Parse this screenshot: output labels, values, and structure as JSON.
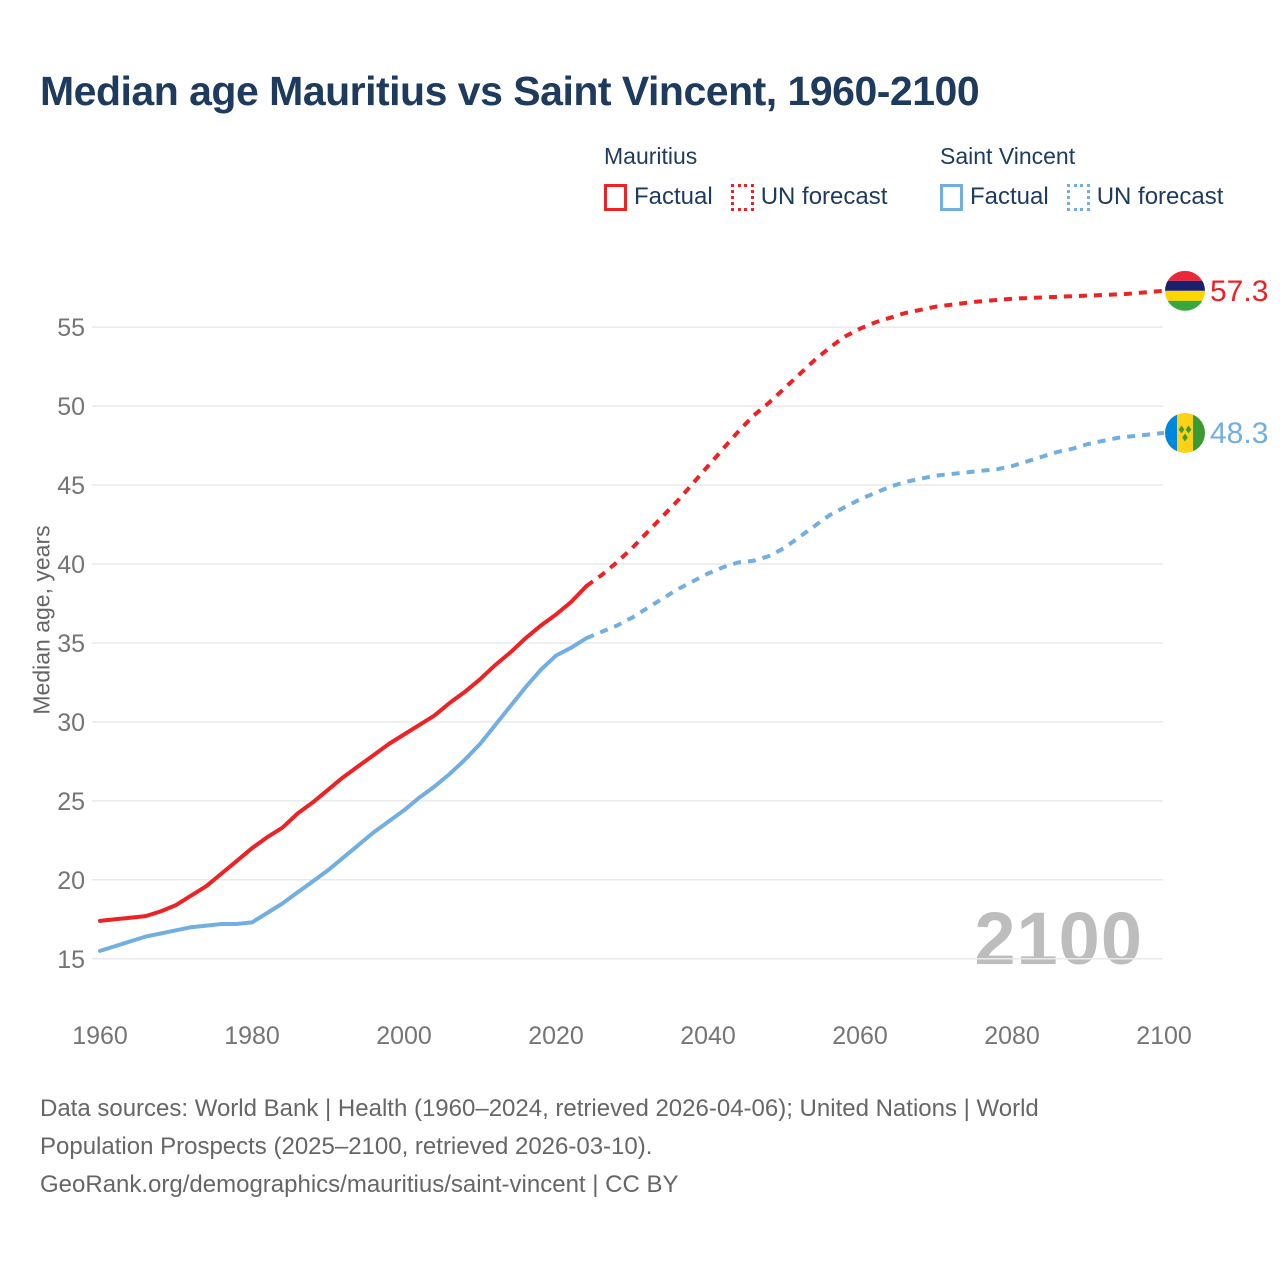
{
  "page": {
    "title": "Median age Mauritius vs Saint Vincent, 1960-2100",
    "watermark": "2100"
  },
  "colors": {
    "mauritius": "#ed2224",
    "saint_vincent": "#72aee0",
    "heading_navy": "#1e3a5c",
    "axis_gray": "#757575",
    "gridline": "#eaeaea"
  },
  "legend": {
    "groups": [
      {
        "name": "Mauritius",
        "color": "#ed2224",
        "items": [
          {
            "label": "Factual",
            "style": "solid"
          },
          {
            "label": "UN forecast",
            "style": "dashed"
          }
        ]
      },
      {
        "name": "Saint Vincent",
        "color": "#72aee0",
        "items": [
          {
            "label": "Factual",
            "style": "solid"
          },
          {
            "label": "UN forecast",
            "style": "dashed"
          }
        ]
      }
    ]
  },
  "chart_data": {
    "type": "line",
    "title": "Median age Mauritius vs Saint Vincent, 1960-2100",
    "xlabel": "",
    "ylabel": "Median age, years",
    "x_ticks": [
      1960,
      1980,
      2000,
      2020,
      2040,
      2060,
      2080,
      2100
    ],
    "y_ticks": [
      15,
      20,
      25,
      30,
      35,
      40,
      45,
      50,
      55
    ],
    "xlim": [
      1956,
      2104
    ],
    "ylim": [
      13,
      59
    ],
    "grid": "horizontal",
    "legend_position": "top-right",
    "annotations": {
      "watermark": "2100"
    },
    "series": [
      {
        "id": "mauritius-factual",
        "name": "Mauritius Factual",
        "color": "#ed2224",
        "style": "solid",
        "x": [
          1960,
          1962,
          1964,
          1966,
          1968,
          1970,
          1972,
          1974,
          1976,
          1978,
          1980,
          1982,
          1984,
          1986,
          1988,
          1990,
          1992,
          1994,
          1996,
          1998,
          2000,
          2002,
          2004,
          2006,
          2008,
          2010,
          2012,
          2014,
          2016,
          2018,
          2020,
          2022,
          2024
        ],
        "y": [
          17.4,
          17.5,
          17.6,
          17.7,
          18.0,
          18.4,
          19.0,
          19.6,
          20.4,
          21.2,
          22.0,
          22.7,
          23.3,
          24.2,
          24.9,
          25.7,
          26.5,
          27.2,
          27.9,
          28.6,
          29.2,
          29.8,
          30.4,
          31.2,
          31.9,
          32.7,
          33.6,
          34.4,
          35.3,
          36.1,
          36.8,
          37.6,
          38.6
        ]
      },
      {
        "id": "mauritius-forecast",
        "name": "Mauritius UN forecast",
        "color": "#ed2224",
        "style": "dashed",
        "x": [
          2024,
          2026,
          2028,
          2030,
          2032,
          2034,
          2036,
          2038,
          2040,
          2042,
          2044,
          2046,
          2048,
          2050,
          2052,
          2054,
          2056,
          2058,
          2060,
          2062,
          2064,
          2066,
          2068,
          2070,
          2075,
          2080,
          2085,
          2090,
          2095,
          2100
        ],
        "y": [
          38.6,
          39.3,
          40.1,
          41.0,
          42.0,
          43.0,
          44.0,
          45.1,
          46.2,
          47.3,
          48.4,
          49.4,
          50.2,
          51.1,
          52.0,
          52.9,
          53.7,
          54.4,
          54.9,
          55.3,
          55.6,
          55.9,
          56.1,
          56.3,
          56.6,
          56.8,
          56.9,
          57.0,
          57.1,
          57.3
        ],
        "end_label": "57.3",
        "flag": "mauritius"
      },
      {
        "id": "saint-vincent-factual",
        "name": "Saint Vincent Factual",
        "color": "#72aee0",
        "style": "solid",
        "x": [
          1960,
          1962,
          1964,
          1966,
          1968,
          1970,
          1972,
          1974,
          1976,
          1978,
          1980,
          1982,
          1984,
          1986,
          1988,
          1990,
          1992,
          1994,
          1996,
          1998,
          2000,
          2002,
          2004,
          2006,
          2008,
          2010,
          2012,
          2014,
          2016,
          2018,
          2020,
          2022,
          2024
        ],
        "y": [
          15.5,
          15.8,
          16.1,
          16.4,
          16.6,
          16.8,
          17.0,
          17.1,
          17.2,
          17.2,
          17.3,
          17.9,
          18.5,
          19.2,
          19.9,
          20.6,
          21.4,
          22.2,
          23.0,
          23.7,
          24.4,
          25.2,
          25.9,
          26.7,
          27.6,
          28.6,
          29.8,
          31.0,
          32.2,
          33.3,
          34.2,
          34.7,
          35.3
        ]
      },
      {
        "id": "saint-vincent-forecast",
        "name": "Saint Vincent UN forecast",
        "color": "#72aee0",
        "style": "dashed",
        "x": [
          2024,
          2026,
          2028,
          2030,
          2032,
          2034,
          2036,
          2038,
          2040,
          2042,
          2044,
          2046,
          2048,
          2050,
          2052,
          2054,
          2056,
          2058,
          2060,
          2062,
          2064,
          2066,
          2068,
          2070,
          2072,
          2074,
          2076,
          2078,
          2080,
          2082,
          2084,
          2086,
          2088,
          2090,
          2092,
          2094,
          2096,
          2098,
          2100
        ],
        "y": [
          35.3,
          35.7,
          36.1,
          36.6,
          37.2,
          37.8,
          38.4,
          38.9,
          39.4,
          39.8,
          40.1,
          40.2,
          40.5,
          41.0,
          41.7,
          42.4,
          43.1,
          43.6,
          44.1,
          44.5,
          44.9,
          45.2,
          45.4,
          45.6,
          45.7,
          45.8,
          45.9,
          46.0,
          46.2,
          46.5,
          46.8,
          47.1,
          47.3,
          47.6,
          47.8,
          48.0,
          48.1,
          48.2,
          48.3
        ],
        "end_label": "48.3",
        "flag": "saint-vincent"
      }
    ]
  },
  "footer": {
    "lines": [
      "Data sources: World Bank | Health (1960–2024, retrieved 2026-04-06); United Nations | World",
      "Population Prospects (2025–2100, retrieved 2026-03-10).",
      "GeoRank.org/demographics/mauritius/saint-vincent | CC BY"
    ]
  }
}
